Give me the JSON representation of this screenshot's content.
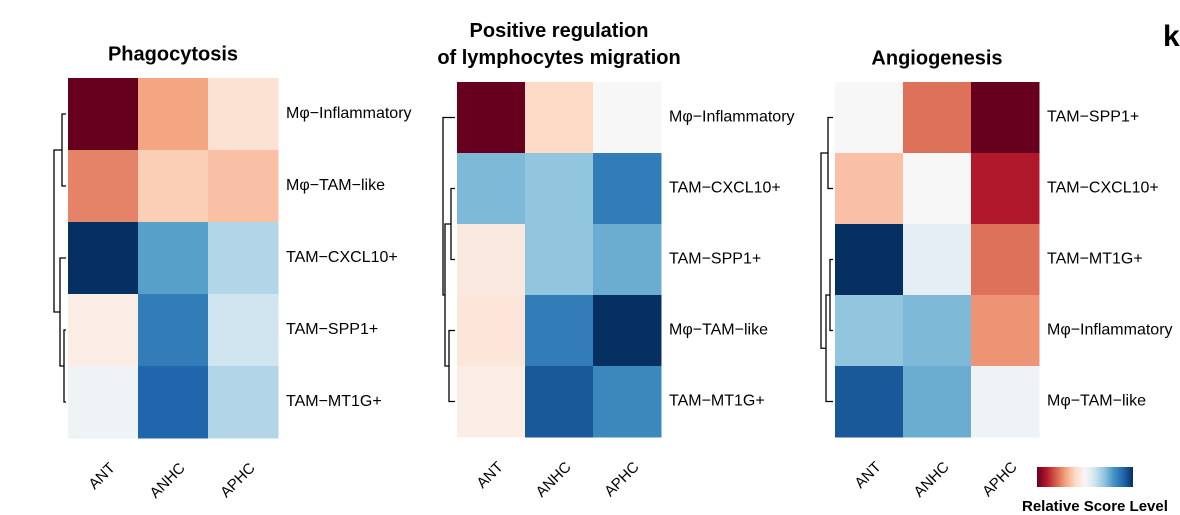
{
  "panel_label": "k",
  "colorbar": {
    "title": "Relative Score Level",
    "zlim": [
      -2,
      2
    ],
    "colors": [
      "#67001f",
      "#b2182b",
      "#d6604d",
      "#f4a582",
      "#fddbc7",
      "#f7f7f7",
      "#d1e5f0",
      "#92c5de",
      "#4393c3",
      "#2166ac",
      "#053061"
    ]
  },
  "chart_data": [
    {
      "type": "heatmap",
      "title": "Phagocytosis",
      "categories": [
        "ANT",
        "ANHC",
        "APHC"
      ],
      "rows": [
        "Mφ−Inflammatory",
        "Mφ−TAM−like",
        "TAM−CXCL10+",
        "TAM−SPP1+",
        "TAM−MT1G+"
      ],
      "values": [
        [
          2,
          0.8,
          0.3
        ],
        [
          1.0,
          0.5,
          0.6
        ],
        [
          -2,
          -1.1,
          -0.6
        ],
        [
          0.15,
          -1.4,
          -0.4
        ],
        [
          -0.1,
          -1.6,
          -0.6
        ]
      ]
    },
    {
      "type": "heatmap",
      "title": "Positive regulation of lymphocytes migration",
      "categories": [
        "ANT",
        "ANHC",
        "APHC"
      ],
      "rows": [
        "Mφ−Inflammatory",
        "TAM−CXCL10+",
        "TAM−SPP1+",
        "Mφ−TAM−like",
        "TAM−MT1G+"
      ],
      "values": [
        [
          2,
          0.4,
          0
        ],
        [
          -0.9,
          -0.8,
          -1.4
        ],
        [
          0.2,
          -0.8,
          -1.0
        ],
        [
          0.25,
          -1.4,
          -2
        ],
        [
          0.15,
          -1.7,
          -1.3
        ]
      ]
    },
    {
      "type": "heatmap",
      "title": "Angiogenesis",
      "categories": [
        "ANT",
        "ANHC",
        "APHC"
      ],
      "rows": [
        "TAM−SPP1+",
        "TAM−CXCL10+",
        "TAM−MT1G+",
        "Mφ−Inflammatory",
        "Mφ−TAM−like"
      ],
      "values": [
        [
          0,
          1.1,
          2
        ],
        [
          0.6,
          0,
          1.6
        ],
        [
          -2,
          -0.2,
          1.1
        ],
        [
          -0.8,
          -0.9,
          0.9
        ],
        [
          -1.7,
          -1.0,
          -0.1
        ]
      ]
    }
  ]
}
